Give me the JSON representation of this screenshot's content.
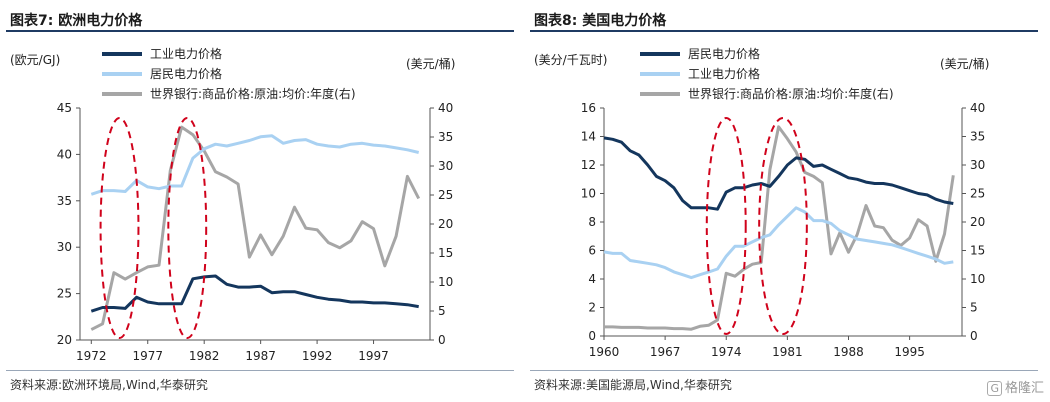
{
  "charts": [
    {
      "id": "left",
      "title": "图表7:    欧洲电力价格",
      "source": "资料来源:欧洲环境局,Wind,华泰研究",
      "left_unit": "(欧元/GJ)",
      "right_unit": "(美元/桶)",
      "legend": [
        {
          "label": "工业电力价格",
          "color": "#14365d"
        },
        {
          "label": "居民电力价格",
          "color": "#a9d1f2"
        },
        {
          "label": "世界银行:商品价格:原油:均价:年度(右)",
          "color": "#a6a6a6"
        }
      ],
      "x_ticks": [
        "1972",
        "1977",
        "1982",
        "1987",
        "1992",
        "1997"
      ],
      "y_left_ticks": [
        "20",
        "25",
        "30",
        "35",
        "40",
        "45"
      ],
      "y_right_ticks": [
        "0",
        "5",
        "10",
        "15",
        "20",
        "25",
        "30",
        "35",
        "40"
      ]
    },
    {
      "id": "right",
      "title": "图表8:    美国电力价格",
      "source": "资料来源:美国能源局,Wind,华泰研究",
      "left_unit": "(美分/千瓦时)",
      "right_unit": "(美元/桶)",
      "legend": [
        {
          "label": "居民电力价格",
          "color": "#14365d"
        },
        {
          "label": "工业电力价格",
          "color": "#a9d1f2"
        },
        {
          "label": "世界银行:商品价格:原油:均价:年度(右)",
          "color": "#a6a6a6"
        }
      ],
      "x_ticks": [
        "1960",
        "1967",
        "1974",
        "1981",
        "1988",
        "1995"
      ],
      "y_left_ticks": [
        "0",
        "2",
        "4",
        "6",
        "8",
        "10",
        "12",
        "14",
        "16"
      ],
      "y_right_ticks": [
        "0",
        "5",
        "10",
        "15",
        "20",
        "25",
        "30",
        "35",
        "40"
      ]
    }
  ],
  "watermark": {
    "label": "格隆汇",
    "glyph": "G"
  },
  "chart_data": [
    {
      "type": "line",
      "title": "欧洲电力价格",
      "x": [
        1972,
        1973,
        1974,
        1975,
        1976,
        1977,
        1978,
        1979,
        1980,
        1981,
        1982,
        1983,
        1984,
        1985,
        1986,
        1987,
        1988,
        1989,
        1990,
        1991,
        1992,
        1993,
        1994,
        1995,
        1996,
        1997,
        1998,
        1999,
        2000,
        2001
      ],
      "y_left_range": [
        20,
        45
      ],
      "y_right_range": [
        0,
        40
      ],
      "colors": {
        "industrial": "#14365d",
        "residential": "#a9d1f2",
        "oil": "#a6a6a6",
        "highlight": "#d0021b"
      },
      "series": [
        {
          "name": "工业电力价格",
          "axis": "left",
          "values": [
            23.1,
            23.5,
            23.5,
            23.4,
            24.6,
            24.1,
            23.9,
            23.9,
            23.9,
            26.6,
            26.8,
            26.9,
            26.0,
            25.7,
            25.7,
            25.8,
            25.1,
            25.2,
            25.2,
            24.9,
            24.6,
            24.4,
            24.3,
            24.1,
            24.1,
            24.0,
            24.0,
            23.9,
            23.8,
            23.6
          ]
        },
        {
          "name": "居民电力价格",
          "axis": "left",
          "values": [
            35.7,
            36.1,
            36.1,
            36.0,
            37.2,
            36.5,
            36.3,
            36.6,
            36.6,
            39.6,
            40.6,
            41.1,
            40.9,
            41.2,
            41.5,
            41.9,
            42.0,
            41.2,
            41.5,
            41.6,
            41.1,
            40.9,
            40.8,
            41.1,
            41.2,
            41.0,
            40.9,
            40.7,
            40.5,
            40.2
          ]
        },
        {
          "name": "世界银行:商品价格:原油:均价:年度(右)",
          "axis": "right",
          "values": [
            1.8,
            2.8,
            11.6,
            10.5,
            11.6,
            12.6,
            12.9,
            29.2,
            36.7,
            35.4,
            32.6,
            29.0,
            28.1,
            26.9,
            14.3,
            18.1,
            14.7,
            17.9,
            22.9,
            19.3,
            19.0,
            16.8,
            15.9,
            17.1,
            20.4,
            19.2,
            12.8,
            17.9,
            28.2,
            24.4
          ]
        }
      ],
      "highlight_ranges": [
        [
          1973,
          1976
        ],
        [
          1979,
          1982
        ]
      ]
    },
    {
      "type": "line",
      "title": "美国电力价格",
      "x": [
        1960,
        1961,
        1962,
        1963,
        1964,
        1965,
        1966,
        1967,
        1968,
        1969,
        1970,
        1971,
        1972,
        1973,
        1974,
        1975,
        1976,
        1977,
        1978,
        1979,
        1980,
        1981,
        1982,
        1983,
        1984,
        1985,
        1986,
        1987,
        1988,
        1989,
        1990,
        1991,
        1992,
        1993,
        1994,
        1995,
        1996,
        1997,
        1998,
        1999,
        2000
      ],
      "y_left_range": [
        0,
        16
      ],
      "y_right_range": [
        0,
        40
      ],
      "colors": {
        "residential": "#14365d",
        "industrial": "#a9d1f2",
        "oil": "#a6a6a6",
        "highlight": "#d0021b"
      },
      "series": [
        {
          "name": "居民电力价格",
          "axis": "left",
          "values": [
            13.9,
            13.8,
            13.6,
            13.0,
            12.7,
            12.0,
            11.2,
            10.9,
            10.4,
            9.5,
            9.0,
            9.0,
            9.0,
            8.9,
            10.1,
            10.4,
            10.4,
            10.6,
            10.7,
            10.5,
            11.2,
            12.0,
            12.5,
            12.4,
            11.9,
            12.0,
            11.7,
            11.4,
            11.1,
            11.0,
            10.8,
            10.7,
            10.7,
            10.6,
            10.4,
            10.2,
            10.0,
            9.9,
            9.6,
            9.4,
            9.3
          ]
        },
        {
          "name": "工业电力价格",
          "axis": "left",
          "values": [
            5.9,
            5.8,
            5.8,
            5.3,
            5.2,
            5.1,
            5.0,
            4.8,
            4.5,
            4.3,
            4.1,
            4.3,
            4.5,
            4.7,
            5.6,
            6.3,
            6.3,
            6.6,
            6.9,
            7.1,
            7.8,
            8.4,
            9.0,
            8.7,
            8.1,
            8.1,
            7.9,
            7.4,
            7.1,
            6.8,
            6.7,
            6.6,
            6.5,
            6.4,
            6.2,
            6.0,
            5.8,
            5.6,
            5.4,
            5.1,
            5.2
          ]
        },
        {
          "name": "世界银行:商品价格:原油:均价:年度(右)",
          "axis": "right",
          "values": [
            1.6,
            1.6,
            1.5,
            1.5,
            1.5,
            1.4,
            1.4,
            1.4,
            1.3,
            1.3,
            1.2,
            1.7,
            1.9,
            2.8,
            11.0,
            10.5,
            11.7,
            12.6,
            12.9,
            29.2,
            36.7,
            34.6,
            32.3,
            28.7,
            28.0,
            26.9,
            14.4,
            18.1,
            14.7,
            17.8,
            22.9,
            19.3,
            19.0,
            16.8,
            15.9,
            17.2,
            20.4,
            19.3,
            13.1,
            17.9,
            28.2
          ]
        }
      ],
      "highlight_ranges": [
        [
          1972,
          1976
        ],
        [
          1978,
          1983
        ]
      ]
    }
  ]
}
